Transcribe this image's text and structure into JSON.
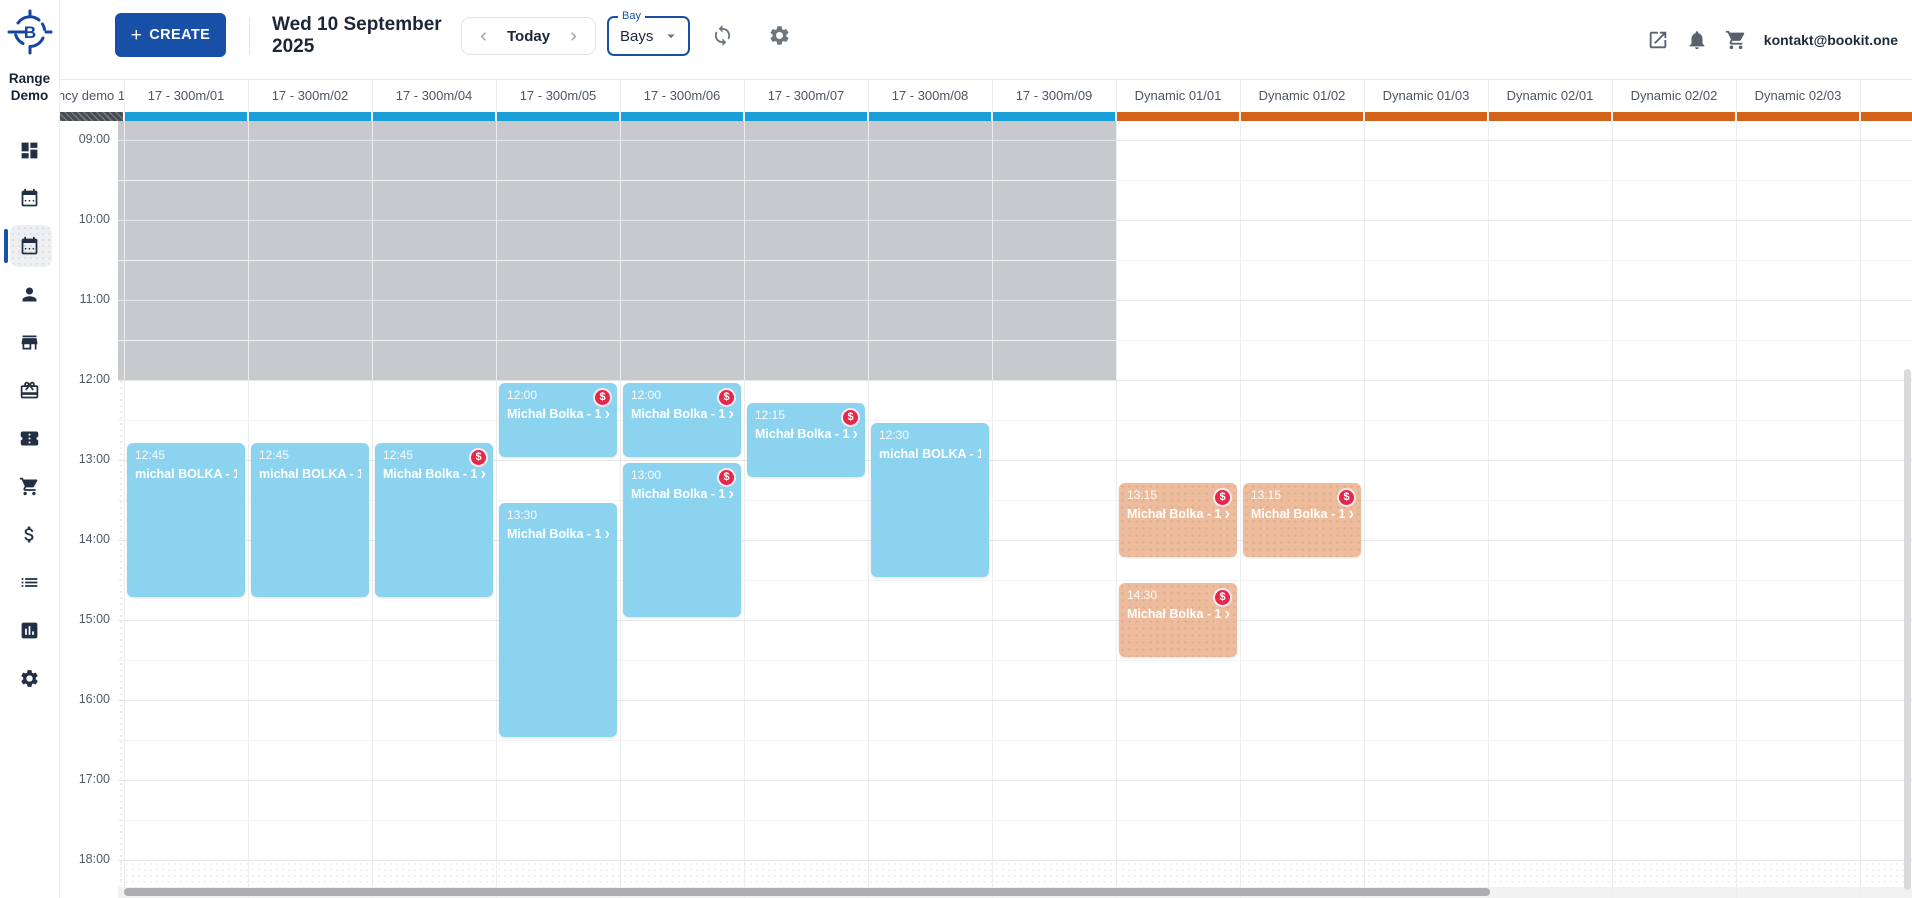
{
  "app": {
    "workspace_name_line1": "Range",
    "workspace_name_line2": "Demo",
    "logo_letter": "B"
  },
  "toolbar": {
    "create_label": "CREATE",
    "date_line1": "Wed 10 September",
    "date_line2": "2025",
    "today_label": "Today",
    "bay_filter_label": "Bay",
    "bay_filter_value": "Bays",
    "user_email": "kontakt@bookit.one"
  },
  "sidebar": {
    "items": [
      {
        "icon": "dashboard-icon",
        "active": false
      },
      {
        "icon": "calendar-icon",
        "active": false
      },
      {
        "icon": "calendar-schedule-icon",
        "active": true
      },
      {
        "icon": "person-icon",
        "active": false
      },
      {
        "icon": "store-icon",
        "active": false
      },
      {
        "icon": "gift-card-icon",
        "active": false
      },
      {
        "icon": "ticket-icon",
        "active": false
      },
      {
        "icon": "cart-icon",
        "active": false
      },
      {
        "icon": "dollar-icon",
        "active": false
      },
      {
        "icon": "list-icon",
        "active": false
      },
      {
        "icon": "bar-chart-icon",
        "active": false
      },
      {
        "icon": "settings-icon",
        "active": false
      }
    ]
  },
  "calendar": {
    "time_labels": [
      "09:00",
      "10:00",
      "11:00",
      "12:00",
      "13:00",
      "14:00",
      "15:00",
      "16:00",
      "17:00",
      "18:00"
    ],
    "columns": [
      {
        "label": "ncy demo 1",
        "group": "demo"
      },
      {
        "label": "17 - 300m/01",
        "group": "range"
      },
      {
        "label": "17 - 300m/02",
        "group": "range"
      },
      {
        "label": "17 - 300m/04",
        "group": "range"
      },
      {
        "label": "17 - 300m/05",
        "group": "range"
      },
      {
        "label": "17 - 300m/06",
        "group": "range"
      },
      {
        "label": "17 - 300m/07",
        "group": "range"
      },
      {
        "label": "17 - 300m/08",
        "group": "range"
      },
      {
        "label": "17 - 300m/09",
        "group": "range"
      },
      {
        "label": "Dynamic 01/01",
        "group": "dynamic"
      },
      {
        "label": "Dynamic 01/02",
        "group": "dynamic"
      },
      {
        "label": "Dynamic 01/03",
        "group": "dynamic"
      },
      {
        "label": "Dynamic 02/01",
        "group": "dynamic"
      },
      {
        "label": "Dynamic 02/02",
        "group": "dynamic"
      },
      {
        "label": "Dynamic 02/03",
        "group": "dynamic"
      },
      {
        "label": "",
        "group": "dynamic"
      }
    ],
    "unavailable_until": "12:00",
    "events": [
      {
        "column": "17 - 300m/01",
        "start": "12:45",
        "end": "14:45",
        "title": "michal BOLKA - 1 …",
        "paid_badge": false
      },
      {
        "column": "17 - 300m/02",
        "start": "12:45",
        "end": "14:45",
        "title": "michal BOLKA - 1 …",
        "paid_badge": false
      },
      {
        "column": "17 - 300m/04",
        "start": "12:45",
        "end": "14:45",
        "title": "Michał Bolka - 1 x …",
        "paid_badge": true
      },
      {
        "column": "17 - 300m/05",
        "start": "12:00",
        "end": "13:00",
        "title": "Michał Bolka - 1 x …",
        "paid_badge": true
      },
      {
        "column": "17 - 300m/05",
        "start": "13:30",
        "end": "16:30",
        "title": "Michał Bolka - 1 x …",
        "paid_badge": false
      },
      {
        "column": "17 - 300m/06",
        "start": "12:00",
        "end": "13:00",
        "title": "Michał Bolka - 1 x …",
        "paid_badge": true
      },
      {
        "column": "17 - 300m/06",
        "start": "13:00",
        "end": "15:00",
        "title": "Michał Bolka - 1 x …",
        "paid_badge": true
      },
      {
        "column": "17 - 300m/07",
        "start": "12:15",
        "end": "13:15",
        "title": "Michał Bolka - 1 x …",
        "paid_badge": true
      },
      {
        "column": "17 - 300m/08",
        "start": "12:30",
        "end": "14:30",
        "title": "michal BOLKA - 1 …",
        "paid_badge": false
      },
      {
        "column": "Dynamic 01/01",
        "start": "13:15",
        "end": "14:15",
        "title": "Michał Bolka - 1 x …",
        "paid_badge": true
      },
      {
        "column": "Dynamic 01/01",
        "start": "14:30",
        "end": "15:30",
        "title": "Michał Bolka - 1 x …",
        "paid_badge": true
      },
      {
        "column": "Dynamic 01/02",
        "start": "13:15",
        "end": "14:15",
        "title": "Michał Bolka - 1 x …",
        "paid_badge": true
      }
    ],
    "badge_glyph": "$"
  },
  "colors": {
    "accent": "#1850A8",
    "range_bar": "#1A9ED8",
    "dynamic_bar": "#D3621A",
    "event_blue": "#8CD3F0",
    "event_tan": "#EDBC9C",
    "badge_red": "#E82748",
    "unavailable": "#C8C9CC"
  }
}
